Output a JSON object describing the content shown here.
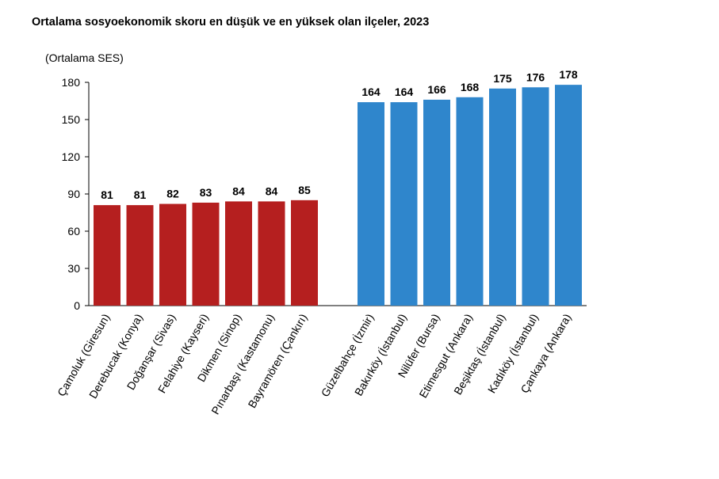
{
  "chart_data": {
    "type": "bar",
    "title": "Ortalama sosyoekonomik skoru en düşük ve en yüksek olan ilçeler, 2023",
    "ylabel": "(Ortalama SES)",
    "ylim": [
      0,
      180
    ],
    "yticks": [
      0,
      30,
      60,
      90,
      120,
      150,
      180
    ],
    "groups": [
      {
        "color": "#b51f1f",
        "categories": [
          "Çamoluk (Giresun)",
          "Derebucak (Konya)",
          "Doğanşar (Sivas)",
          "Felahiye (Kayseri)",
          "Dikmen (Sinop)",
          "Pınarbaşı (Kastamonu)",
          "Bayramören (Çankırı)"
        ],
        "values": [
          81,
          81,
          82,
          83,
          84,
          84,
          85
        ]
      },
      {
        "color": "#2f86cc",
        "categories": [
          "Güzelbahçe (İzmir)",
          "Bakırköy (İstanbul)",
          "Nilüfer (Bursa)",
          "Etimesgut (Ankara)",
          "Beşiktaş (İstanbul)",
          "Kadıköy (İstanbul)",
          "Çankaya (Ankara)"
        ],
        "values": [
          164,
          164,
          166,
          168,
          175,
          176,
          178
        ]
      }
    ]
  }
}
